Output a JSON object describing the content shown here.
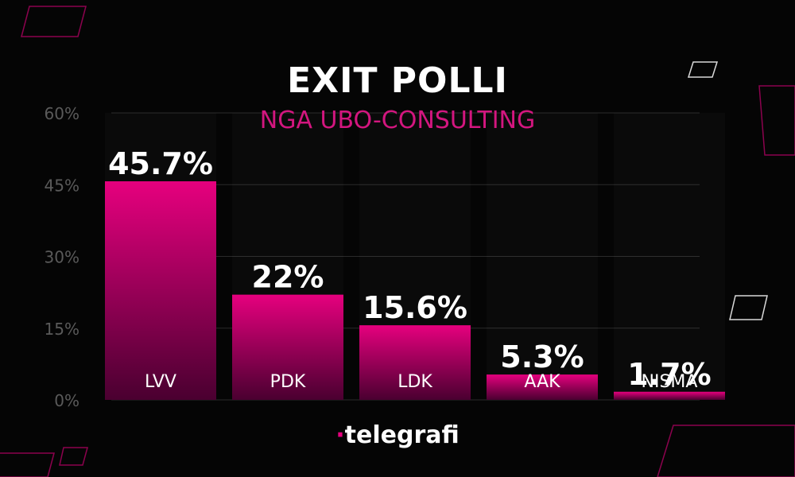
{
  "header": {
    "title": "EXIT POLLI",
    "subtitle": "NGA UBO-CONSULTING"
  },
  "logo": {
    "dot": "·",
    "text": "telegrafi"
  },
  "colors": {
    "background": "#050505",
    "bar_top": "#e6007e",
    "bar_bottom": "#4a0030",
    "accent": "#d3167f",
    "grid": "#2a2a2a",
    "tick": "#5a5a5a"
  },
  "chart_data": {
    "type": "bar",
    "categories": [
      "LVV",
      "PDK",
      "LDK",
      "AAK",
      "NISMA"
    ],
    "values": [
      45.7,
      22,
      15.6,
      5.3,
      1.7
    ],
    "value_labels": [
      "45.7%",
      "22%",
      "15.6%",
      "5.3%",
      "1.7%"
    ],
    "title": "EXIT POLLI",
    "subtitle": "NGA UBO-CONSULTING",
    "xlabel": "",
    "ylabel": "",
    "yticks": [
      "0%",
      "15%",
      "30%",
      "45%",
      "60%"
    ],
    "ylim": [
      0,
      60
    ],
    "grid": true
  }
}
